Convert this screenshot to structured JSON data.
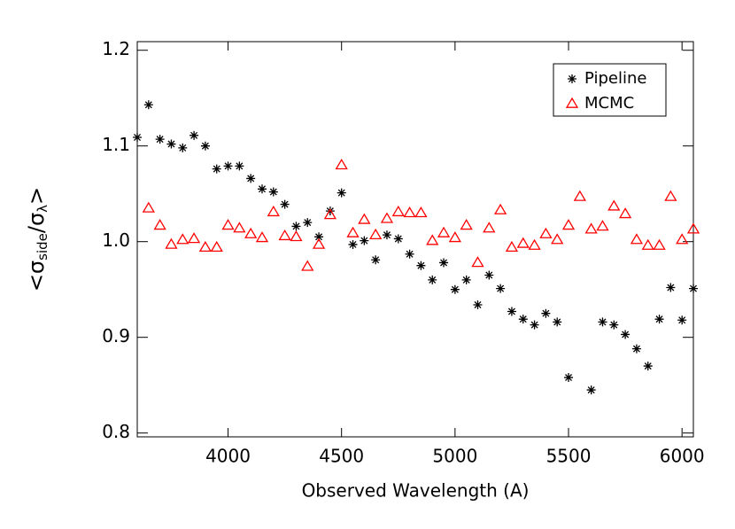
{
  "chart_data": {
    "type": "scatter",
    "xlabel": "Observed Wavelength (A)",
    "ylabel_parts": [
      "<σ",
      "side",
      "/σ",
      "λ",
      ">"
    ],
    "xlim": [
      3600,
      6050
    ],
    "ylim": [
      0.796,
      1.209
    ],
    "xticks": [
      4000,
      4500,
      5000,
      5500,
      6000
    ],
    "yticks": [
      0.8,
      0.9,
      {
        "value": 1,
        "label": "1.0"
      },
      1.1,
      1.2
    ],
    "grid": false,
    "legend": "upper right",
    "series": [
      {
        "name": "Pipeline",
        "color": "#000000",
        "marker": "asterisk",
        "x": [
          3600,
          3650,
          3700,
          3750,
          3800,
          3850,
          3900,
          3950,
          4000,
          4050,
          4100,
          4150,
          4200,
          4250,
          4300,
          4350,
          4400,
          4450,
          4500,
          4550,
          4600,
          4650,
          4700,
          4750,
          4800,
          4850,
          4900,
          4950,
          5000,
          5050,
          5100,
          5150,
          5200,
          5250,
          5300,
          5350,
          5400,
          5450,
          5500,
          5600,
          5650,
          5700,
          5750,
          5800,
          5850,
          5900,
          5950,
          6000,
          6050
        ],
        "values": [
          1.109,
          1.143,
          1.107,
          1.102,
          1.098,
          1.111,
          1.1,
          1.076,
          1.079,
          1.079,
          1.066,
          1.055,
          1.052,
          1.039,
          1.016,
          1.02,
          1.005,
          1.032,
          1.051,
          0.997,
          1.001,
          0.981,
          1.007,
          1.003,
          0.987,
          0.975,
          0.96,
          0.978,
          0.95,
          0.96,
          0.934,
          0.965,
          0.951,
          0.927,
          0.919,
          0.913,
          0.925,
          0.916,
          0.858,
          0.845,
          0.916,
          0.913,
          0.903,
          0.888,
          0.87,
          0.919,
          0.952,
          0.918,
          0.951
        ]
      },
      {
        "name": "MCMC",
        "color": "#ff0000",
        "marker": "triangle",
        "x": [
          3650,
          3700,
          3750,
          3800,
          3850,
          3900,
          3950,
          4000,
          4050,
          4100,
          4150,
          4200,
          4250,
          4300,
          4350,
          4400,
          4450,
          4500,
          4550,
          4600,
          4650,
          4700,
          4750,
          4800,
          4850,
          4900,
          4950,
          5000,
          5050,
          5100,
          5150,
          5200,
          5250,
          5300,
          5350,
          5400,
          5450,
          5500,
          5550,
          5600,
          5650,
          5700,
          5750,
          5800,
          5850,
          5900,
          5950,
          6000,
          6050
        ],
        "values": [
          1.035,
          1.017,
          0.997,
          1.002,
          1.003,
          0.994,
          0.994,
          1.017,
          1.014,
          1.008,
          1.004,
          1.031,
          1.006,
          1.005,
          0.974,
          0.997,
          1.028,
          1.08,
          1.009,
          1.023,
          1.007,
          1.024,
          1.031,
          1.03,
          1.03,
          1.001,
          1.009,
          1.004,
          1.017,
          0.978,
          1.014,
          1.033,
          0.994,
          0.998,
          0.996,
          1.008,
          1.002,
          1.017,
          1.047,
          1.013,
          1.016,
          1.037,
          1.029,
          1.002,
          0.996,
          0.996,
          1.047,
          1.002,
          1.013
        ]
      }
    ]
  }
}
